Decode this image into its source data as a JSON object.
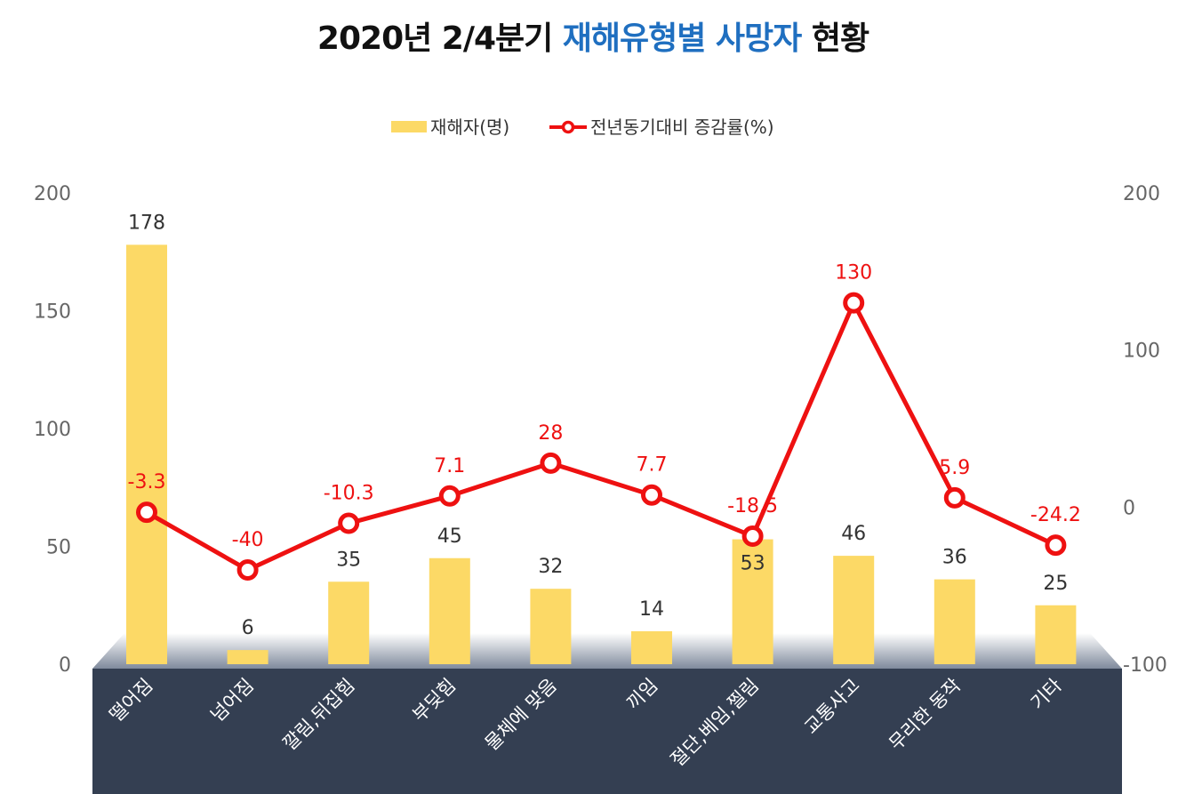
{
  "title": {
    "part1": "2020년 2/4분기 ",
    "part2": "재해유형별 사망자",
    "part3": " 현황"
  },
  "colors": {
    "bar": "#fcd966",
    "line": "#ee1111",
    "accent": "#1f6fc0",
    "base": "#343f52"
  },
  "chart_data": {
    "type": "bar",
    "categories": [
      "떨어짐",
      "넘어짐",
      "깔림,뒤집힘",
      "부딪힘",
      "물체에 맞음",
      "끼임",
      "절단,베임,찔림",
      "교통사고",
      "무리한 동작",
      "기타"
    ],
    "series": [
      {
        "name": "재해자(명)",
        "type": "bar",
        "axis": "left",
        "values": [
          178,
          6,
          35,
          45,
          32,
          14,
          53,
          46,
          36,
          25
        ],
        "labels": [
          "178",
          "6",
          "35",
          "45",
          "32",
          "14",
          "53",
          "46",
          "36",
          "25"
        ]
      },
      {
        "name": "전년동기대비 증감률(%)",
        "type": "line",
        "axis": "right",
        "values": [
          -3.3,
          -40,
          -10.3,
          7.1,
          28,
          7.7,
          -18.5,
          130,
          5.9,
          -24.2
        ],
        "labels": [
          "-3.3",
          "-40",
          "-10.3",
          "7.1",
          "28",
          "7.7",
          "-18.5",
          "130",
          "5.9",
          "-24.2"
        ]
      }
    ],
    "left_axis": {
      "ylim": [
        0,
        200
      ],
      "ticks": [
        "0",
        "50",
        "100",
        "150",
        "200"
      ]
    },
    "right_axis": {
      "ylim": [
        -100,
        200
      ],
      "ticks": [
        "-100",
        "0",
        "100",
        "200"
      ]
    },
    "legend": "top-center",
    "grid": false
  }
}
